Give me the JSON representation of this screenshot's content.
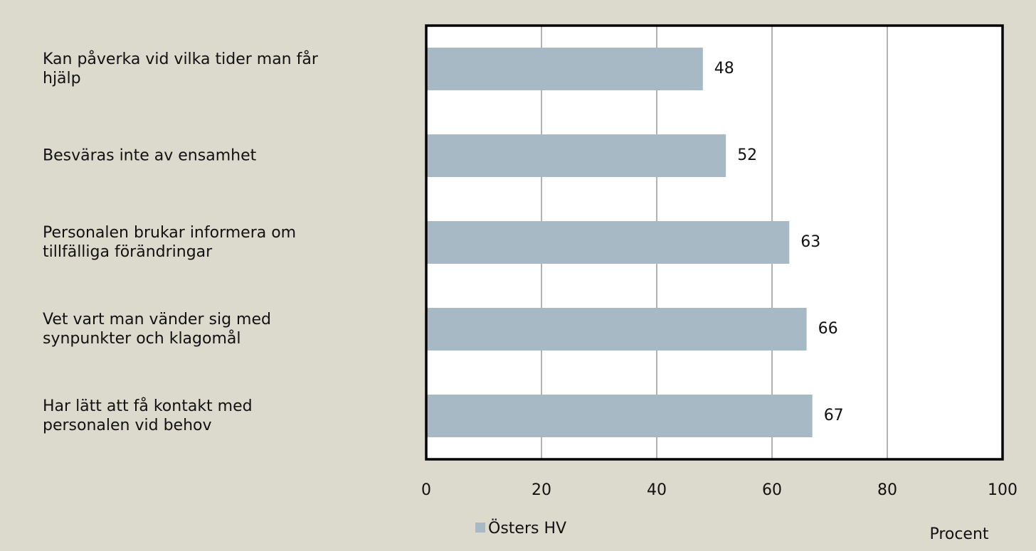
{
  "chart_data": {
    "type": "barh",
    "categories": [
      "Kan påverka vid vilka tider man får\nhjälp",
      "Besväras inte av ensamhet",
      "Personalen brukar informera om\ntillfälliga förändringar",
      "Vet vart man vänder sig med\nsynpunkter och klagomål",
      "Har lätt att få kontakt med\npersonalen vid behov"
    ],
    "series": [
      {
        "name": "Östers HV",
        "color": "#a6b9c5",
        "values": [
          48,
          52,
          63,
          66,
          67
        ]
      }
    ],
    "xlim": [
      0,
      100
    ],
    "xticks": [
      0,
      20,
      40,
      60,
      80,
      100
    ],
    "xlabel": "Procent",
    "grid": true,
    "legend": "bottom"
  }
}
